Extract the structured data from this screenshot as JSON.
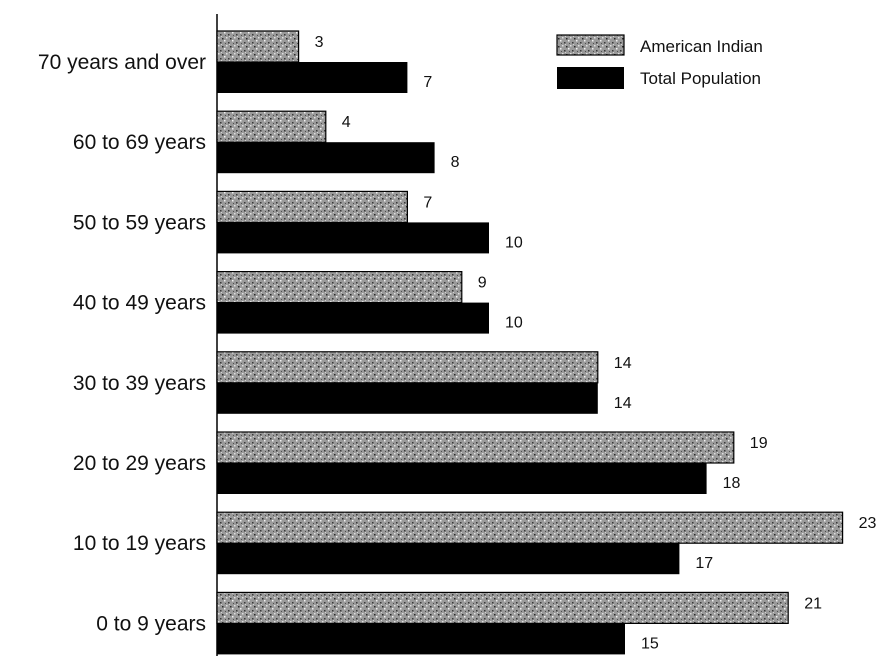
{
  "chart_data": {
    "type": "bar",
    "orientation": "horizontal",
    "categories": [
      "70 years and over",
      "60 to 69 years",
      "50 to 59 years",
      "40 to 49 years",
      "30 to 39 years",
      "20 to 29 years",
      "10 to 19 years",
      "0 to 9 years"
    ],
    "series": [
      {
        "name": "American Indian",
        "values": [
          3,
          4,
          7,
          9,
          14,
          19,
          23,
          21
        ]
      },
      {
        "name": "Total Population",
        "values": [
          7,
          8,
          10,
          10,
          14,
          18,
          17,
          15
        ]
      }
    ],
    "value_labels": {
      "American Indian": [
        "3",
        "4",
        "7",
        "9",
        "14",
        "19",
        "23",
        "21"
      ],
      "Total Population": [
        "7",
        "8",
        "10",
        "10",
        "14",
        "18",
        "17",
        "15"
      ]
    },
    "title": "",
    "xlabel": "",
    "ylabel": "",
    "xlim": [
      0,
      23.5
    ],
    "grid": false,
    "legend_position": "top-right",
    "colors": {
      "American Indian": "#8a8a8a",
      "Total Population": "#000000"
    }
  }
}
